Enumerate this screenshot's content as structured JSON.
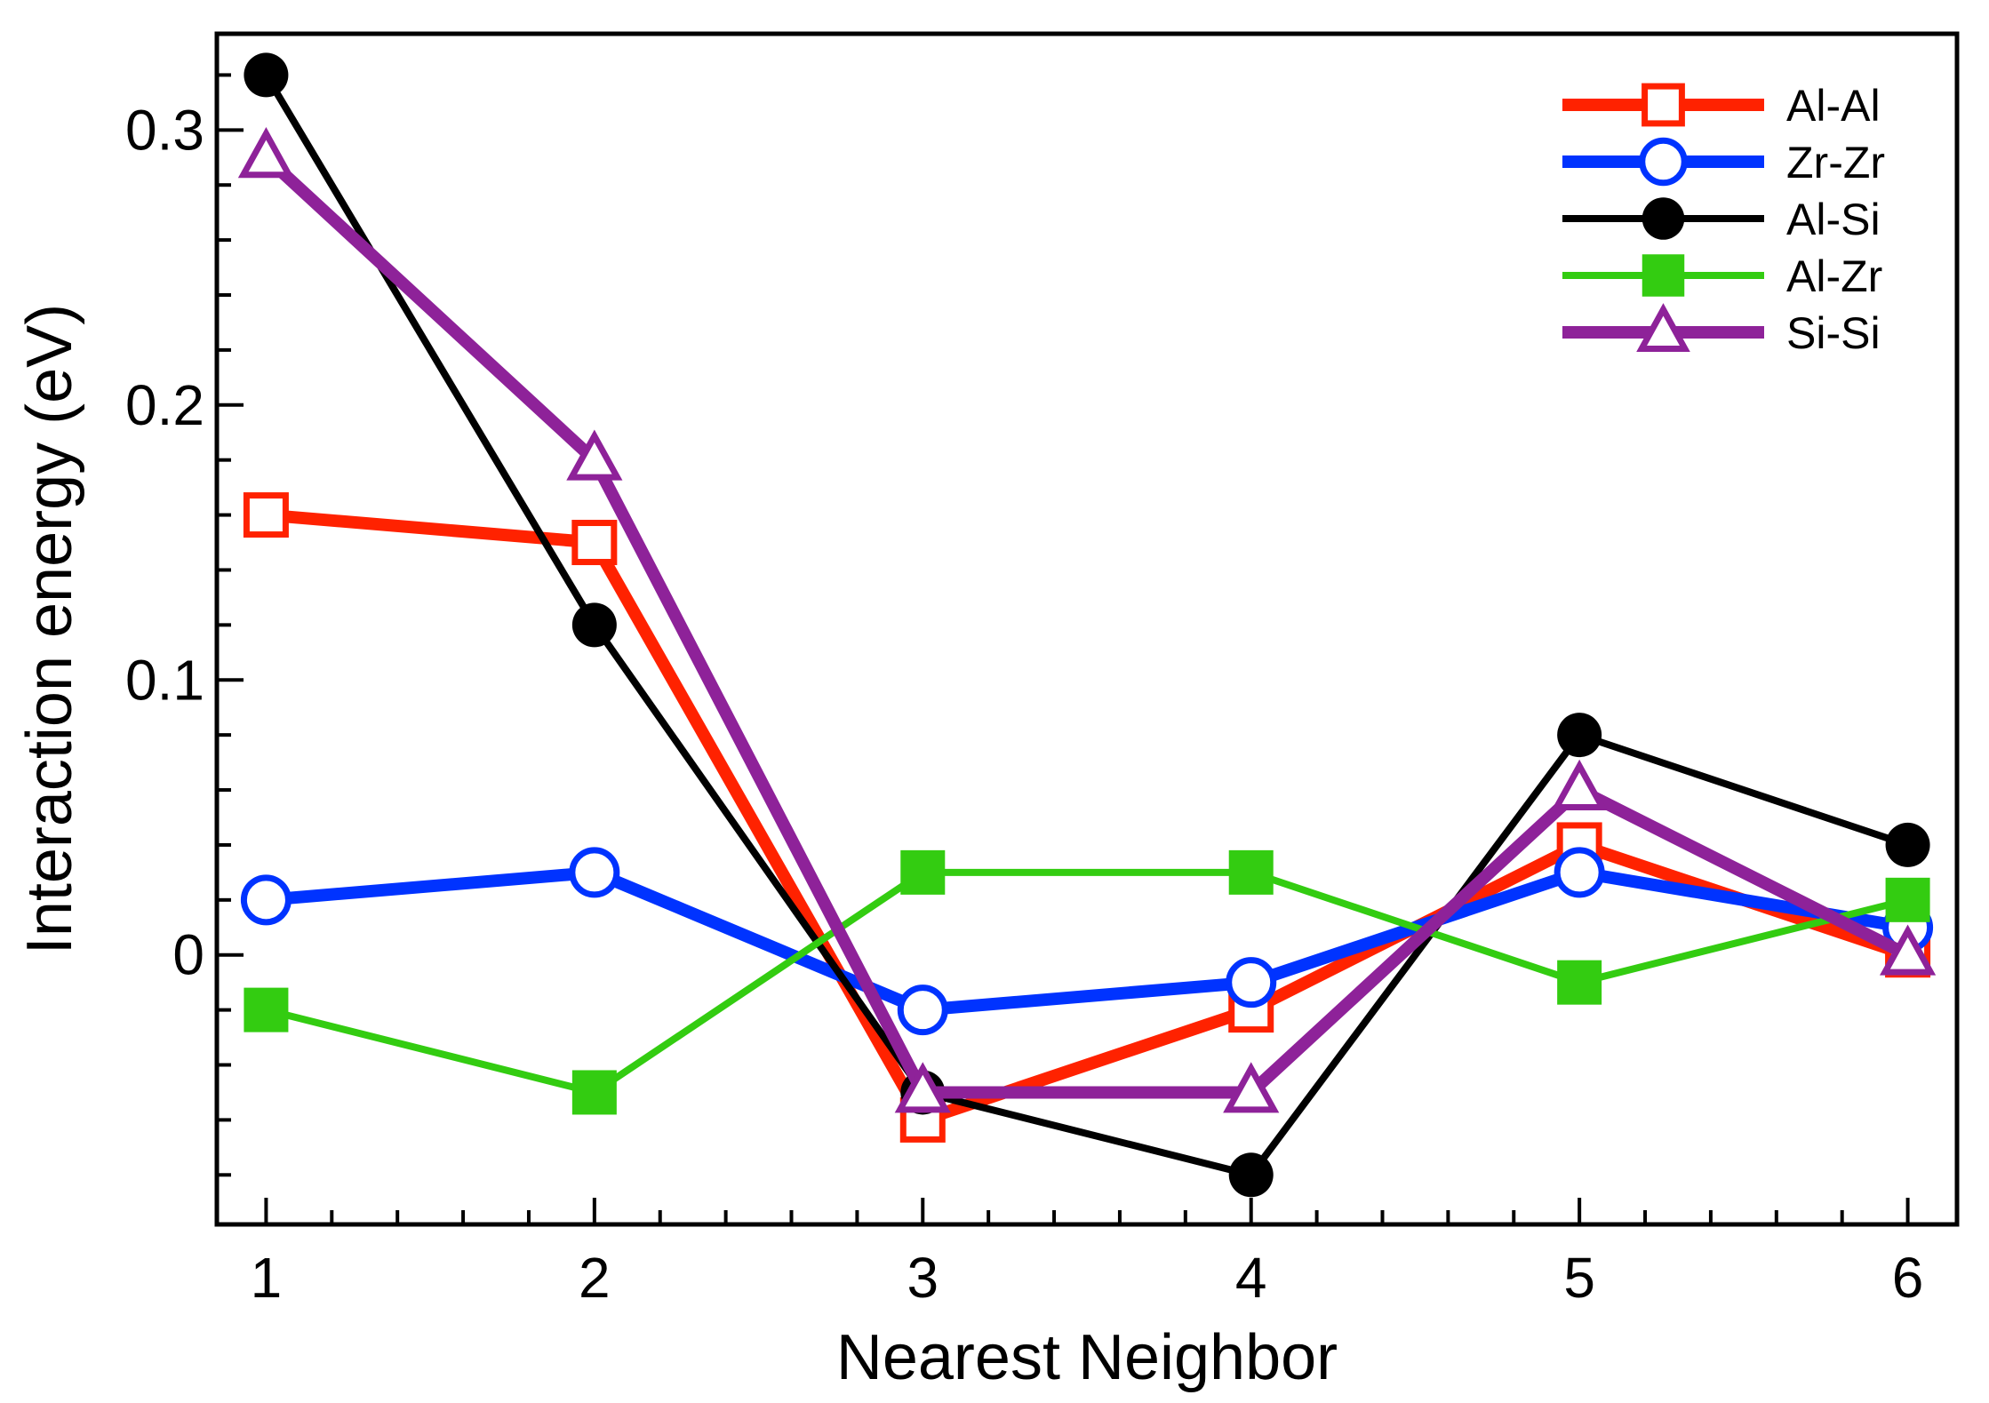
{
  "chart_data": {
    "type": "line",
    "xlabel": "Nearest Neighbor",
    "ylabel": "Interaction energy (eV)",
    "x": [
      1,
      2,
      3,
      4,
      5,
      6
    ],
    "xlim": [
      0.85,
      6.15
    ],
    "ylim": [
      -0.098,
      0.335
    ],
    "x_ticks": [
      {
        "value": 1,
        "label": "1"
      },
      {
        "value": 2,
        "label": "2"
      },
      {
        "value": 3,
        "label": "3"
      },
      {
        "value": 4,
        "label": "4"
      },
      {
        "value": 5,
        "label": "5"
      },
      {
        "value": 6,
        "label": "6"
      }
    ],
    "y_ticks": [
      {
        "value": 0,
        "label": "0"
      },
      {
        "value": 0.1,
        "label": "0.1"
      },
      {
        "value": 0.2,
        "label": "0.2"
      },
      {
        "value": 0.3,
        "label": "0.3"
      }
    ],
    "x_minor_step": 0.2,
    "y_minor_step": 0.02,
    "grid": false,
    "legend_position": "top-right",
    "series": [
      {
        "name": "Al-Al",
        "color": "#ff2200",
        "marker": "open-square",
        "values": [
          0.16,
          0.15,
          -0.06,
          -0.02,
          0.04,
          0.0
        ]
      },
      {
        "name": "Zr-Zr",
        "color": "#0033ff",
        "marker": "open-circle",
        "values": [
          0.02,
          0.03,
          -0.02,
          -0.01,
          0.03,
          0.01
        ]
      },
      {
        "name": "Al-Si",
        "color": "#000000",
        "marker": "filled-circle",
        "values": [
          0.32,
          0.12,
          -0.05,
          -0.08,
          0.08,
          0.04
        ]
      },
      {
        "name": "Al-Zr",
        "color": "#33cc11",
        "marker": "filled-square",
        "values": [
          -0.02,
          -0.05,
          0.03,
          0.03,
          -0.01,
          0.02
        ]
      },
      {
        "name": "Si-Si",
        "color": "#8e2299",
        "marker": "open-triangle",
        "values": [
          0.29,
          0.18,
          -0.05,
          -0.05,
          0.06,
          0.0
        ]
      }
    ]
  }
}
